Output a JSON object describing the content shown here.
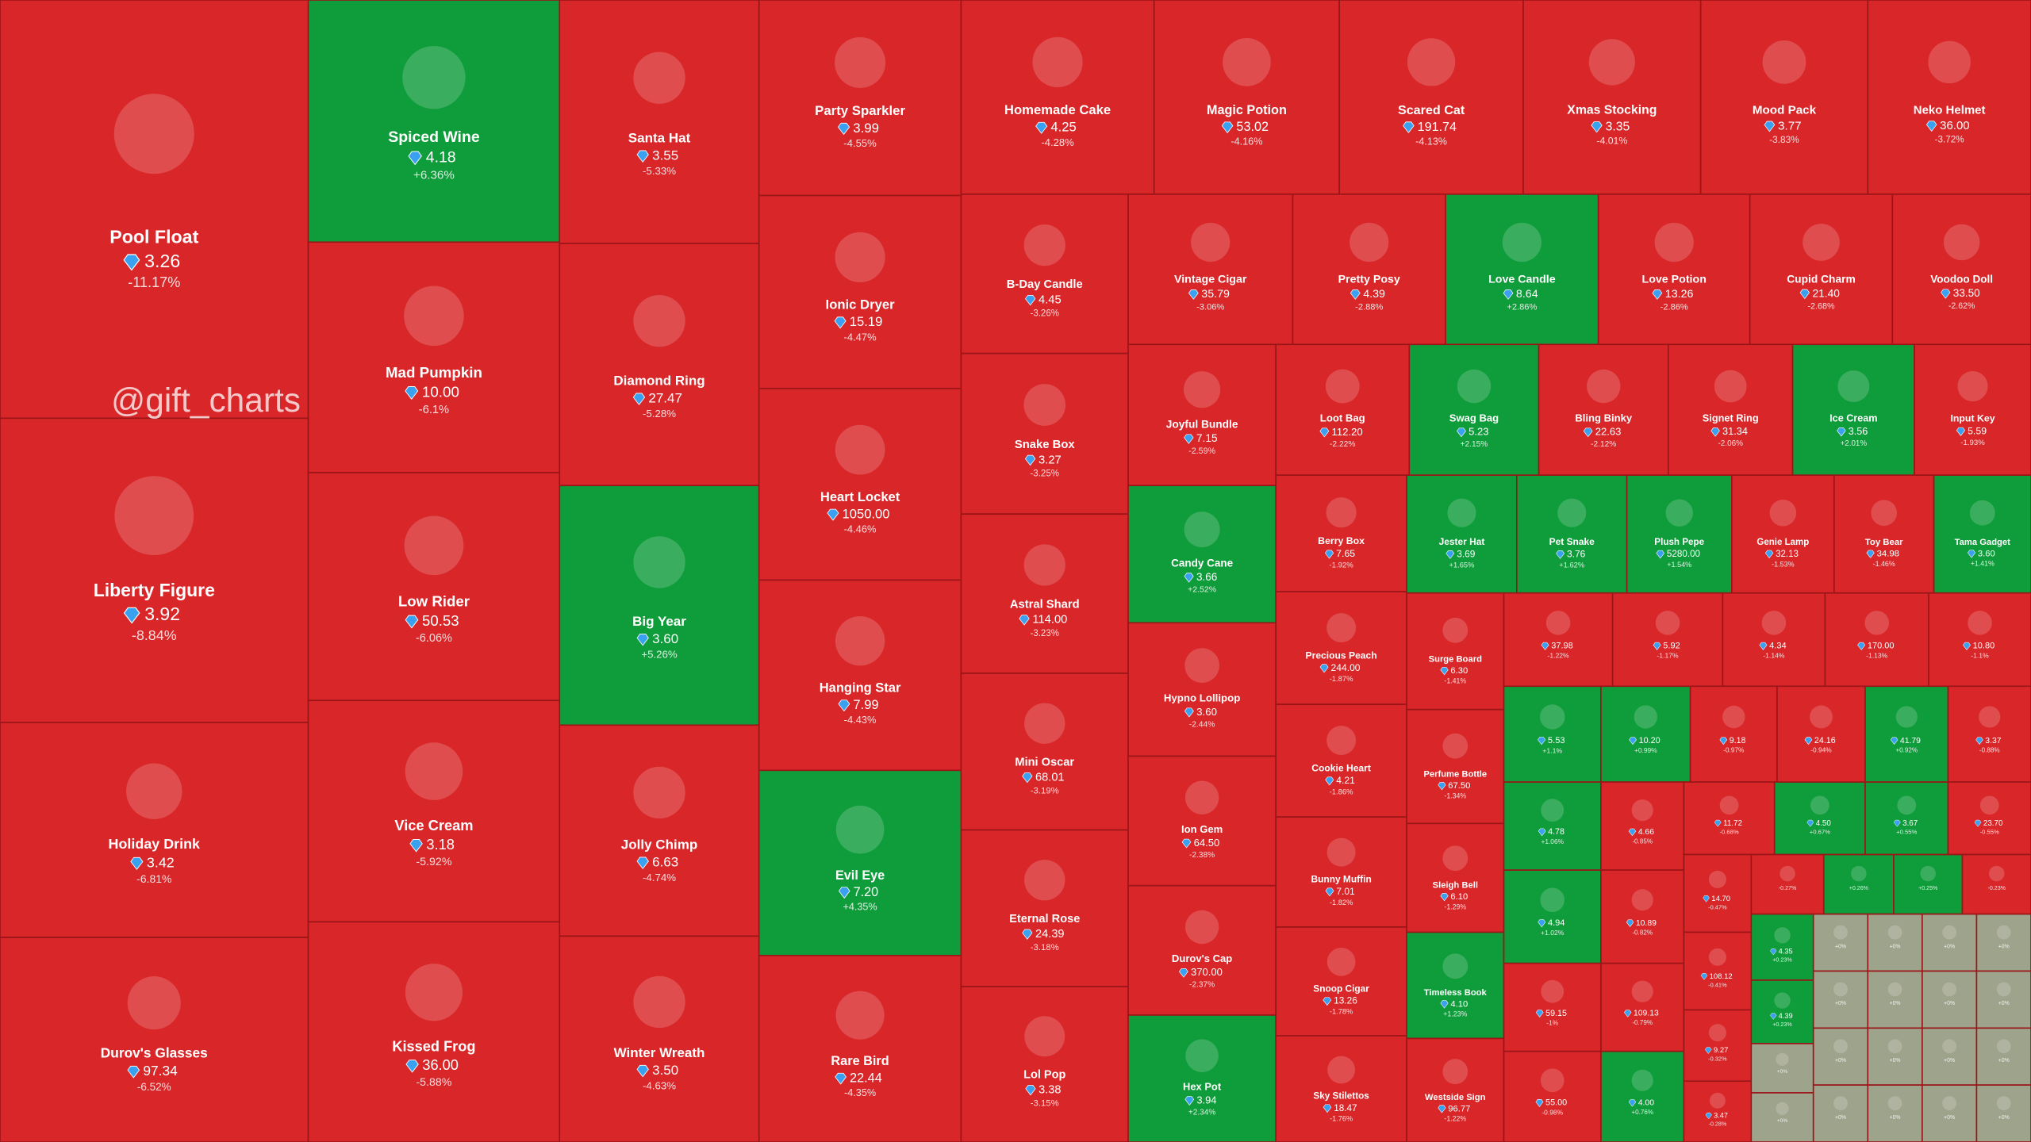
{
  "watermark": "@gift_charts",
  "cells": [
    {
      "name": "Pool Float",
      "price": "3.26",
      "change": "-11.17%"
    },
    {
      "name": "Liberty Figure",
      "price": "3.92",
      "change": "-8.84%"
    },
    {
      "name": "Holiday Drink",
      "price": "3.42",
      "change": "-6.81%"
    },
    {
      "name": "Durov's Glasses",
      "price": "97.34",
      "change": "-6.52%"
    },
    {
      "name": "Spiced Wine",
      "price": "4.18",
      "change": "+6.36%"
    },
    {
      "name": "Mad Pumpkin",
      "price": "10.00",
      "change": "-6.1%"
    },
    {
      "name": "Low Rider",
      "price": "50.53",
      "change": "-6.06%"
    },
    {
      "name": "Vice Cream",
      "price": "3.18",
      "change": "-5.92%"
    },
    {
      "name": "Kissed Frog",
      "price": "36.00",
      "change": "-5.88%"
    },
    {
      "name": "Santa Hat",
      "price": "3.55",
      "change": "-5.33%"
    },
    {
      "name": "Diamond Ring",
      "price": "27.47",
      "change": "-5.28%"
    },
    {
      "name": "Big Year",
      "price": "3.60",
      "change": "+5.26%"
    },
    {
      "name": "Jolly Chimp",
      "price": "6.63",
      "change": "-4.74%"
    },
    {
      "name": "Winter Wreath",
      "price": "3.50",
      "change": "-4.63%"
    },
    {
      "name": "Party Sparkler",
      "price": "3.99",
      "change": "-4.55%"
    },
    {
      "name": "Ionic Dryer",
      "price": "15.19",
      "change": "-4.47%"
    },
    {
      "name": "Heart Locket",
      "price": "1050.00",
      "change": "-4.46%"
    },
    {
      "name": "Hanging Star",
      "price": "7.99",
      "change": "-4.43%"
    },
    {
      "name": "Evil Eye",
      "price": "7.20",
      "change": "+4.35%"
    },
    {
      "name": "Rare Bird",
      "price": "22.44",
      "change": "-4.35%"
    },
    {
      "name": "Homemade Cake",
      "price": "4.25",
      "change": "-4.28%"
    },
    {
      "name": "Magic Potion",
      "price": "53.02",
      "change": "-4.16%"
    },
    {
      "name": "Scared Cat",
      "price": "191.74",
      "change": "-4.13%"
    },
    {
      "name": "Xmas Stocking",
      "price": "3.35",
      "change": "-4.01%"
    },
    {
      "name": "Mood Pack",
      "price": "3.77",
      "change": "-3.83%"
    },
    {
      "name": "Neko Helmet",
      "price": "36.00",
      "change": "-3.72%"
    },
    {
      "name": "B-Day Candle",
      "price": "4.45",
      "change": "-3.26%"
    },
    {
      "name": "Snake Box",
      "price": "3.27",
      "change": "-3.25%"
    },
    {
      "name": "Astral Shard",
      "price": "114.00",
      "change": "-3.23%"
    },
    {
      "name": "Mini Oscar",
      "price": "68.01",
      "change": "-3.19%"
    },
    {
      "name": "Eternal Rose",
      "price": "24.39",
      "change": "-3.18%"
    },
    {
      "name": "Lol Pop",
      "price": "3.38",
      "change": "-3.15%"
    },
    {
      "name": "Vintage Cigar",
      "price": "35.79",
      "change": "-3.06%"
    },
    {
      "name": "Pretty Posy",
      "price": "4.39",
      "change": "-2.88%"
    },
    {
      "name": "Love Candle",
      "price": "8.64",
      "change": "+2.86%"
    },
    {
      "name": "Love Potion",
      "price": "13.26",
      "change": "-2.86%"
    },
    {
      "name": "Cupid Charm",
      "price": "21.40",
      "change": "-2.68%"
    },
    {
      "name": "Voodoo Doll",
      "price": "33.50",
      "change": "-2.62%"
    },
    {
      "name": "Joyful Bundle",
      "price": "7.15",
      "change": "-2.59%"
    },
    {
      "name": "Candy Cane",
      "price": "3.66",
      "change": "+2.52%"
    },
    {
      "name": "Hypno Lollipop",
      "price": "3.60",
      "change": "-2.44%"
    },
    {
      "name": "Ion Gem",
      "price": "64.50",
      "change": "-2.38%"
    },
    {
      "name": "Durov's Cap",
      "price": "370.00",
      "change": "-2.37%"
    },
    {
      "name": "Hex Pot",
      "price": "3.94",
      "change": "+2.34%"
    },
    {
      "name": "Loot Bag",
      "price": "112.20",
      "change": "-2.22%"
    },
    {
      "name": "Swag Bag",
      "price": "5.23",
      "change": "+2.15%"
    },
    {
      "name": "Bling Binky",
      "price": "22.63",
      "change": "-2.12%"
    },
    {
      "name": "Signet Ring",
      "price": "31.34",
      "change": "-2.06%"
    },
    {
      "name": "Ice Cream",
      "price": "3.56",
      "change": "+2.01%"
    },
    {
      "name": "Input Key",
      "price": "5.59",
      "change": "-1.93%"
    },
    {
      "name": "Berry Box",
      "price": "7.65",
      "change": "-1.92%"
    },
    {
      "name": "Precious Peach",
      "price": "244.00",
      "change": "-1.87%"
    },
    {
      "name": "Cookie Heart",
      "price": "4.21",
      "change": "-1.86%"
    },
    {
      "name": "Bunny Muffin",
      "price": "7.01",
      "change": "-1.82%"
    },
    {
      "name": "Snoop Cigar",
      "price": "13.26",
      "change": "-1.78%"
    },
    {
      "name": "Sky Stilettos",
      "price": "18.47",
      "change": "-1.76%"
    },
    {
      "name": "Jester Hat",
      "price": "3.69",
      "change": "+1.65%"
    },
    {
      "name": "Pet Snake",
      "price": "3.76",
      "change": "+1.62%"
    },
    {
      "name": "Plush Pepe",
      "price": "5280.00",
      "change": "+1.54%"
    },
    {
      "name": "Genie Lamp",
      "price": "32.13",
      "change": "-1.53%"
    },
    {
      "name": "Toy Bear",
      "price": "34.98",
      "change": "-1.46%"
    },
    {
      "name": "Tama Gadget",
      "price": "3.60",
      "change": "+1.41%"
    },
    {
      "name": "Surge Board",
      "price": "6.30",
      "change": "-1.41%"
    },
    {
      "name": "Perfume Bottle",
      "price": "67.50",
      "change": "-1.34%"
    },
    {
      "name": "Sleigh Bell",
      "price": "6.10",
      "change": "-1.29%"
    },
    {
      "name": "Timeless Book",
      "price": "4.10",
      "change": "+1.23%"
    },
    {
      "name": "Westside Sign",
      "price": "96.77",
      "change": "-1.22%"
    },
    {
      "price": "37.98",
      "change": "-1.22%"
    },
    {
      "price": "5.92",
      "change": "-1.17%"
    },
    {
      "price": "4.34",
      "change": "-1.14%"
    },
    {
      "price": "170.00",
      "change": "-1.13%"
    },
    {
      "price": "10.80",
      "change": "-1.1%"
    },
    {
      "price": "5.53",
      "change": "+1.1%"
    },
    {
      "price": "10.20",
      "change": "+0.99%"
    },
    {
      "price": "9.18",
      "change": "-0.97%"
    },
    {
      "price": "24.16",
      "change": "-0.94%"
    },
    {
      "price": "41.79",
      "change": "+0.92%"
    },
    {
      "price": "3.37",
      "change": "-0.88%"
    },
    {
      "price": "4.78",
      "change": "+1.06%"
    },
    {
      "price": "4.94",
      "change": "+1.02%"
    },
    {
      "price": "59.15",
      "change": "-1%"
    },
    {
      "price": "55.00",
      "change": "-0.98%"
    },
    {
      "price": "4.66",
      "change": "-0.85%"
    },
    {
      "price": "10.89",
      "change": "-0.82%"
    },
    {
      "price": "109.13",
      "change": "-0.79%"
    },
    {
      "price": "4.00",
      "change": "+0.76%"
    },
    {
      "price": "11.72",
      "change": "-0.68%"
    },
    {
      "price": "4.50",
      "change": "+0.67%"
    },
    {
      "price": "3.67",
      "change": "+0.55%"
    },
    {
      "price": "23.70",
      "change": "-0.55%"
    },
    {
      "price": "14.70",
      "change": "-0.47%"
    },
    {
      "price": "108.12",
      "change": "-0.41%"
    },
    {
      "price": "9.27",
      "change": "-0.32%"
    },
    {
      "price": "3.47",
      "change": "-0.28%"
    },
    {
      "change": "-0.27%"
    },
    {
      "change": "+0.26%"
    },
    {
      "change": "+0.25%"
    },
    {
      "change": "-0.23%"
    },
    {
      "price": "4.35",
      "change": "+0.23%"
    },
    {
      "price": "4.39",
      "change": "+0.23%"
    },
    {
      "change": "+0%"
    },
    {
      "change": "+0%"
    },
    {
      "change": "+0%"
    },
    {
      "change": "+0%"
    },
    {
      "change": "+0%"
    },
    {
      "change": "+0%"
    },
    {
      "change": "+0%"
    },
    {
      "change": "+0%"
    },
    {
      "change": "+0%"
    },
    {
      "change": "+0%"
    },
    {
      "change": "+0%"
    },
    {
      "change": "+0%"
    },
    {
      "change": "+0%"
    },
    {
      "change": "+0%"
    },
    {
      "change": "+0%"
    },
    {
      "change": "+0%"
    },
    {
      "change": "+0%"
    },
    {
      "change": "+0%"
    }
  ]
}
